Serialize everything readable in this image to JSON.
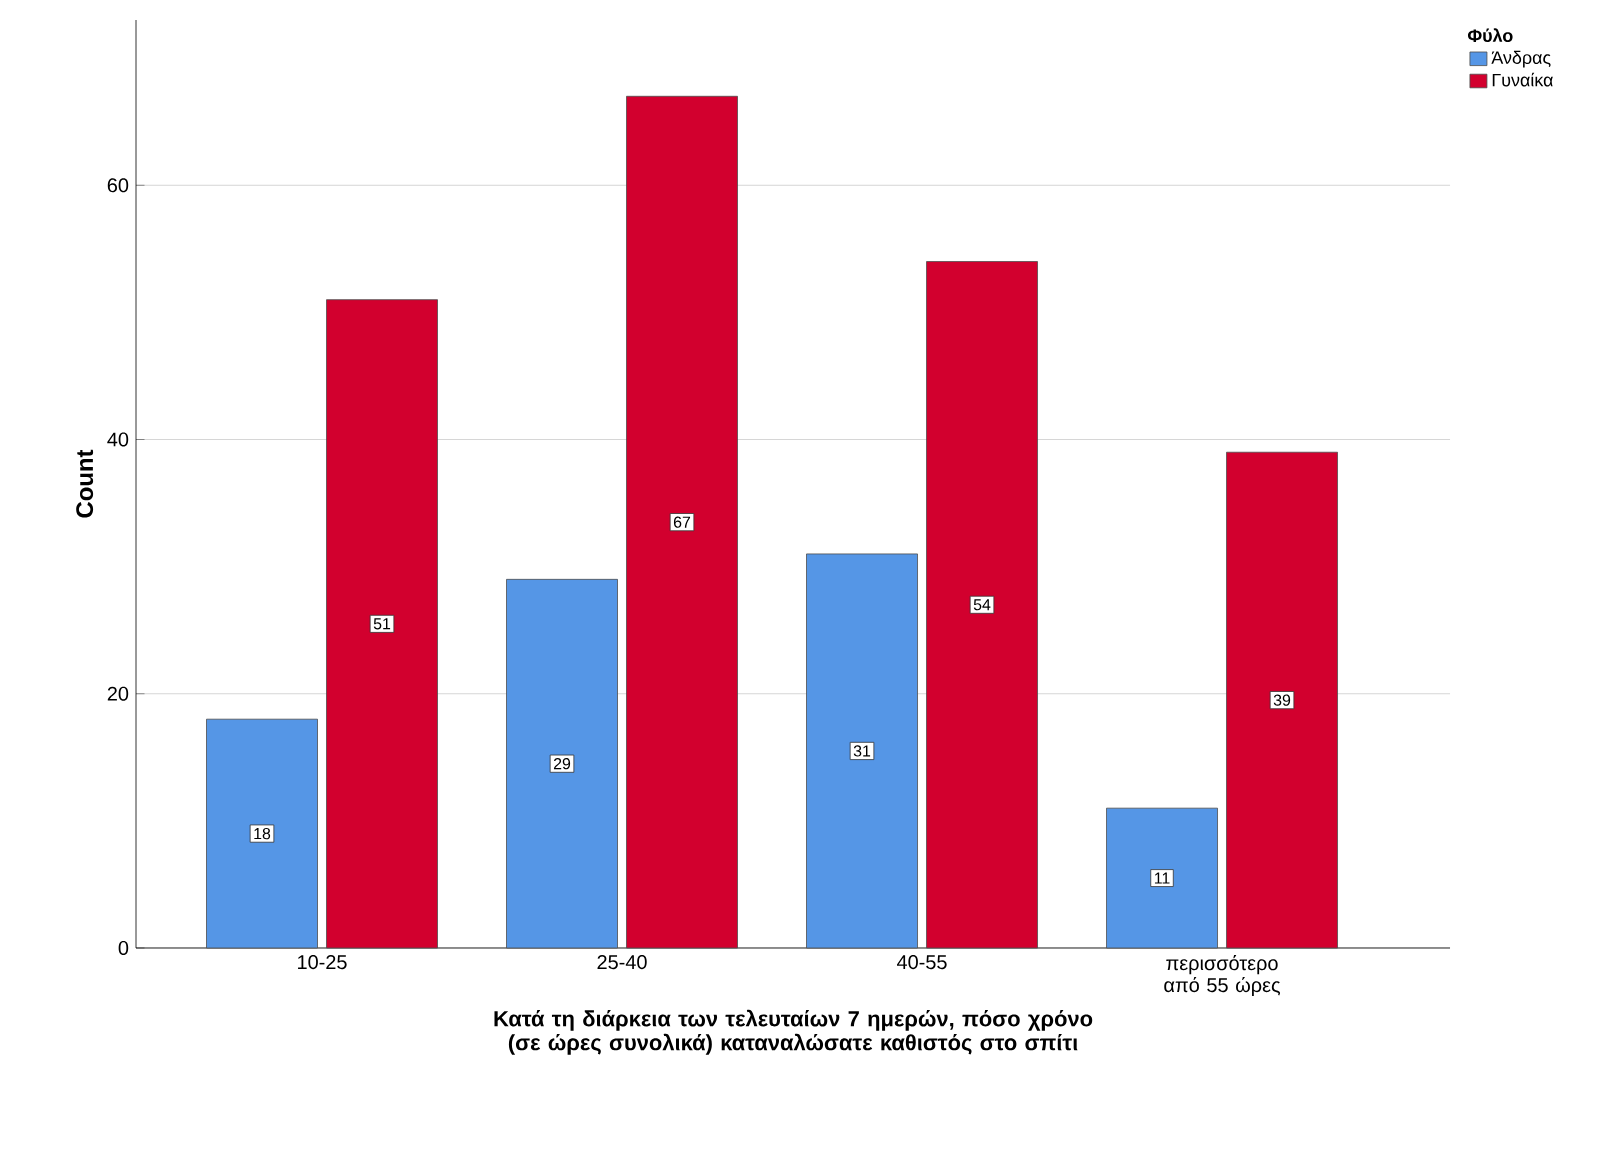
{
  "chart_data": {
    "type": "bar",
    "xlabel": "Κατά τη διάρκεια των τελευταίων 7 ημερών, πόσο χρόνο (σε ώρες συνολικά) καταναλώσατε καθιστός στο σπίτι",
    "ylabel": "Count",
    "legend_title": "Φύλο",
    "categories": [
      "10-25",
      "25-40",
      "40-55",
      "περισσότερο από 55 ώρες"
    ],
    "series": [
      {
        "name": "Άνδρας",
        "color": "#5596e6",
        "values": [
          18,
          29,
          31,
          11
        ]
      },
      {
        "name": "Γυναίκα",
        "color": "#d2002e",
        "values": [
          51,
          67,
          54,
          39
        ]
      }
    ],
    "ylim": [
      0,
      73
    ],
    "yticks": [
      0,
      20,
      40,
      60
    ],
    "grid": "y",
    "legend": "top right",
    "data_labels": true
  }
}
